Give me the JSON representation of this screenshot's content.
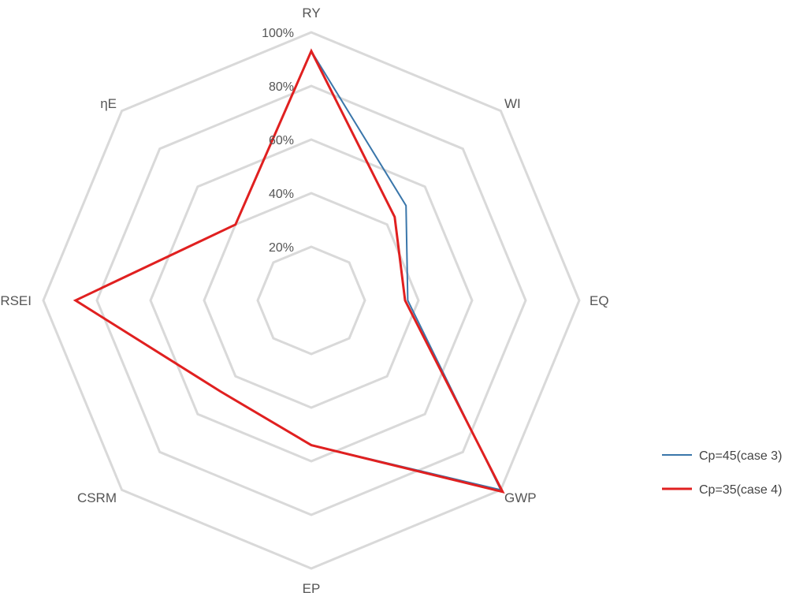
{
  "chart_data": {
    "type": "radar",
    "title": "",
    "axes": [
      "RY",
      "WI",
      "EQ",
      "GWP",
      "EP",
      "CSRM",
      "RSEI",
      "ηE"
    ],
    "ticks": [
      "20%",
      "40%",
      "60%",
      "80%",
      "100%"
    ],
    "tick_values": [
      20,
      40,
      60,
      80,
      100
    ],
    "rmax": 100,
    "grid": true,
    "legend_position": "right",
    "series": [
      {
        "name": "Cp=45(case 3)",
        "color": "#3a76aa",
        "values": [
          93,
          50,
          36,
          100,
          54,
          48,
          88,
          40
        ]
      },
      {
        "name": "Cp=35(case 4)",
        "color": "#e02020",
        "values": [
          93,
          44,
          35,
          101,
          54,
          48,
          88,
          40
        ]
      }
    ]
  }
}
